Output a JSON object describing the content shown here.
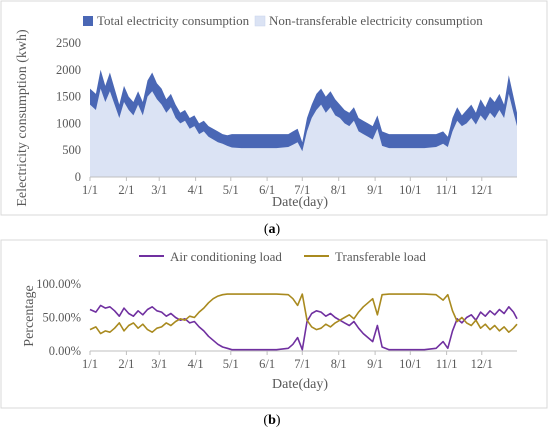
{
  "chart_data": [
    {
      "type": "area",
      "panel_label": "a",
      "xlabel": "Date(day)",
      "ylabel": "Eelectricity consumption (kwh)",
      "ylim": [
        0,
        2500
      ],
      "yticks": [
        "0",
        "500",
        "1000",
        "1500",
        "2000",
        "2500"
      ],
      "categories": [
        "1/1",
        "2/1",
        "3/1",
        "4/1",
        "5/1",
        "6/1",
        "7/1",
        "8/1",
        "9/1",
        "10/1",
        "11/1",
        "12/1"
      ],
      "x_start": 1,
      "x_end": 365,
      "x_tick_days": [
        1,
        32,
        60,
        91,
        121,
        152,
        182,
        213,
        244,
        274,
        305,
        335
      ],
      "grid": false,
      "legend_position": "top",
      "series": [
        {
          "name": "Total electricity consumption",
          "color": "#4a67b5",
          "x": [
            1,
            6,
            10,
            14,
            18,
            22,
            26,
            30,
            34,
            38,
            42,
            46,
            50,
            54,
            58,
            62,
            66,
            70,
            74,
            78,
            82,
            86,
            90,
            94,
            98,
            102,
            106,
            110,
            114,
            118,
            122,
            130,
            140,
            150,
            160,
            170,
            174,
            178,
            182,
            186,
            190,
            194,
            198,
            202,
            206,
            210,
            214,
            218,
            222,
            226,
            230,
            234,
            238,
            242,
            246,
            250,
            256,
            266,
            276,
            286,
            296,
            302,
            306,
            310,
            314,
            318,
            322,
            326,
            330,
            334,
            338,
            342,
            346,
            350,
            354,
            358,
            362,
            365
          ],
          "values": [
            1650,
            1550,
            2000,
            1700,
            1950,
            1650,
            1350,
            1700,
            1500,
            1400,
            1600,
            1400,
            1800,
            1950,
            1750,
            1650,
            1450,
            1550,
            1350,
            1200,
            1250,
            1100,
            1150,
            1000,
            1050,
            950,
            900,
            850,
            800,
            780,
            800,
            800,
            800,
            800,
            800,
            800,
            850,
            900,
            650,
            1100,
            1350,
            1550,
            1650,
            1500,
            1600,
            1450,
            1350,
            1250,
            1200,
            1300,
            1100,
            1050,
            1000,
            950,
            1150,
            850,
            800,
            800,
            800,
            800,
            800,
            850,
            750,
            1100,
            1300,
            1150,
            1250,
            1350,
            1200,
            1450,
            1300,
            1500,
            1400,
            1550,
            1350,
            1900,
            1500,
            1200
          ]
        },
        {
          "name": "Non-transferable electricity consumption",
          "color": "#dbe3f4",
          "x": [
            1,
            6,
            10,
            14,
            18,
            22,
            26,
            30,
            34,
            38,
            42,
            46,
            50,
            54,
            58,
            62,
            66,
            70,
            74,
            78,
            82,
            86,
            90,
            94,
            98,
            102,
            106,
            110,
            114,
            118,
            122,
            130,
            140,
            150,
            160,
            170,
            174,
            178,
            182,
            186,
            190,
            194,
            198,
            202,
            206,
            210,
            214,
            218,
            222,
            226,
            230,
            234,
            238,
            242,
            246,
            250,
            256,
            266,
            276,
            286,
            296,
            302,
            306,
            310,
            314,
            318,
            322,
            326,
            330,
            334,
            338,
            342,
            346,
            350,
            354,
            358,
            362,
            365
          ],
          "values": [
            1350,
            1250,
            1650,
            1400,
            1600,
            1350,
            1100,
            1400,
            1250,
            1150,
            1350,
            1150,
            1500,
            1600,
            1450,
            1350,
            1200,
            1300,
            1100,
            1000,
            1050,
            900,
            950,
            800,
            850,
            750,
            700,
            650,
            620,
            580,
            550,
            540,
            540,
            540,
            540,
            560,
            600,
            650,
            480,
            850,
            1100,
            1250,
            1350,
            1200,
            1300,
            1150,
            1100,
            1000,
            950,
            1050,
            850,
            800,
            750,
            700,
            900,
            580,
            540,
            540,
            540,
            540,
            560,
            620,
            560,
            850,
            1050,
            950,
            1000,
            1100,
            980,
            1150,
            1050,
            1200,
            1100,
            1250,
            1100,
            1550,
            1200,
            950
          ]
        }
      ]
    },
    {
      "type": "line",
      "panel_label": "b",
      "xlabel": "Date(day)",
      "ylabel": "Percentage",
      "ylim": [
        0,
        100
      ],
      "yticks": [
        "0.00%",
        "50.00%",
        "100.00%"
      ],
      "categories": [
        "1/1",
        "2/1",
        "3/1",
        "4/1",
        "5/1",
        "6/1",
        "7/1",
        "8/1",
        "9/1",
        "10/1",
        "11/1",
        "12/1"
      ],
      "x_start": 1,
      "x_end": 365,
      "x_tick_days": [
        1,
        32,
        60,
        91,
        121,
        152,
        182,
        213,
        244,
        274,
        305,
        335
      ],
      "grid": false,
      "legend_position": "top",
      "series": [
        {
          "name": "Air conditioning load",
          "color": "#7030a0",
          "x": [
            1,
            6,
            10,
            14,
            18,
            22,
            26,
            30,
            34,
            38,
            42,
            46,
            50,
            54,
            58,
            62,
            66,
            70,
            74,
            78,
            82,
            86,
            90,
            94,
            98,
            102,
            106,
            110,
            114,
            118,
            122,
            130,
            140,
            150,
            160,
            170,
            174,
            178,
            182,
            186,
            190,
            194,
            198,
            202,
            206,
            210,
            214,
            218,
            222,
            226,
            230,
            234,
            238,
            242,
            246,
            250,
            256,
            266,
            276,
            286,
            296,
            302,
            306,
            310,
            314,
            318,
            322,
            326,
            330,
            334,
            338,
            342,
            346,
            350,
            354,
            358,
            362,
            365
          ],
          "values": [
            62,
            58,
            68,
            64,
            66,
            60,
            52,
            64,
            56,
            52,
            60,
            54,
            62,
            66,
            60,
            58,
            52,
            56,
            50,
            46,
            48,
            42,
            44,
            36,
            30,
            22,
            16,
            10,
            6,
            4,
            2,
            2,
            2,
            2,
            2,
            4,
            10,
            20,
            2,
            44,
            56,
            60,
            58,
            52,
            56,
            50,
            46,
            42,
            38,
            44,
            34,
            26,
            20,
            14,
            38,
            6,
            2,
            2,
            2,
            2,
            4,
            14,
            4,
            30,
            48,
            42,
            50,
            54,
            46,
            58,
            52,
            60,
            54,
            62,
            56,
            66,
            58,
            48
          ]
        },
        {
          "name": "Transferable load",
          "color": "#a98a1f",
          "x": [
            1,
            6,
            10,
            14,
            18,
            22,
            26,
            30,
            34,
            38,
            42,
            46,
            50,
            54,
            58,
            62,
            66,
            70,
            74,
            78,
            82,
            86,
            90,
            94,
            98,
            102,
            106,
            110,
            114,
            118,
            122,
            130,
            140,
            150,
            160,
            170,
            174,
            178,
            182,
            186,
            190,
            194,
            198,
            202,
            206,
            210,
            214,
            218,
            222,
            226,
            230,
            234,
            238,
            242,
            246,
            250,
            256,
            266,
            276,
            286,
            296,
            302,
            306,
            310,
            314,
            318,
            322,
            326,
            330,
            334,
            338,
            342,
            346,
            350,
            354,
            358,
            362,
            365
          ],
          "values": [
            32,
            36,
            26,
            30,
            28,
            34,
            42,
            30,
            38,
            42,
            34,
            40,
            32,
            28,
            34,
            36,
            42,
            38,
            44,
            48,
            46,
            52,
            50,
            58,
            64,
            72,
            78,
            82,
            84,
            85,
            85,
            85,
            85,
            85,
            85,
            84,
            78,
            68,
            85,
            46,
            36,
            32,
            34,
            40,
            36,
            42,
            46,
            50,
            54,
            48,
            58,
            66,
            72,
            78,
            54,
            84,
            85,
            85,
            85,
            85,
            84,
            76,
            84,
            60,
            44,
            50,
            42,
            38,
            46,
            34,
            40,
            32,
            38,
            30,
            36,
            28,
            34,
            40
          ]
        }
      ]
    }
  ]
}
